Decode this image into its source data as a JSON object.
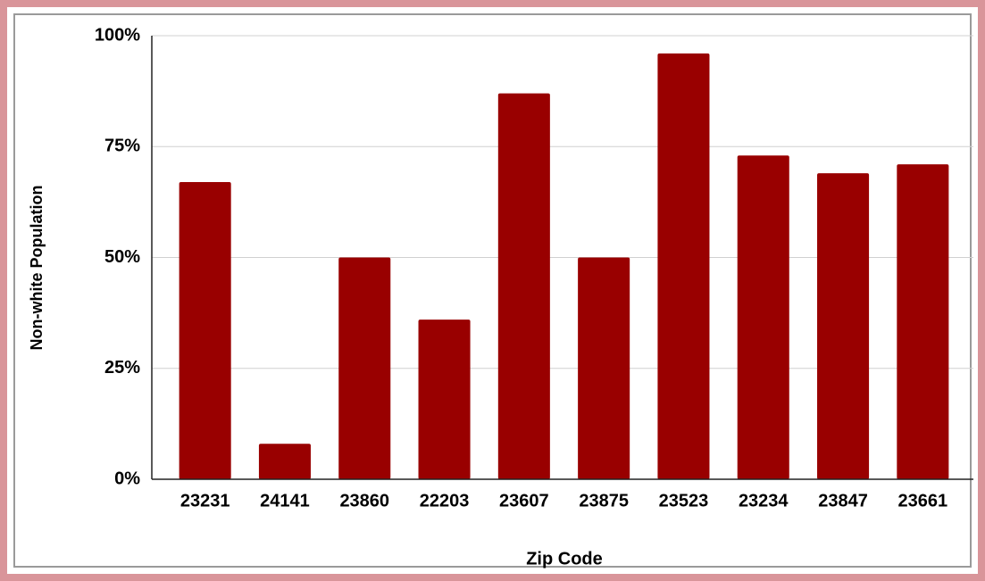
{
  "chart_data": {
    "type": "bar",
    "x_label": "Zip Code",
    "y_label": "Non-white Population",
    "categories": [
      "23231",
      "24141",
      "23860",
      "22203",
      "23607",
      "23875",
      "23523",
      "23234",
      "23847",
      "23661"
    ],
    "values": [
      67,
      8,
      50,
      36,
      87,
      50,
      96,
      73,
      69,
      71
    ],
    "color": "#990000",
    "ylim": [
      0,
      100
    ],
    "yticks": [
      {
        "value": 0,
        "label": "0%"
      },
      {
        "value": 25,
        "label": "25%"
      },
      {
        "value": 50,
        "label": "50%"
      },
      {
        "value": 75,
        "label": "75%"
      },
      {
        "value": 100,
        "label": "100%"
      }
    ],
    "grid": true
  }
}
